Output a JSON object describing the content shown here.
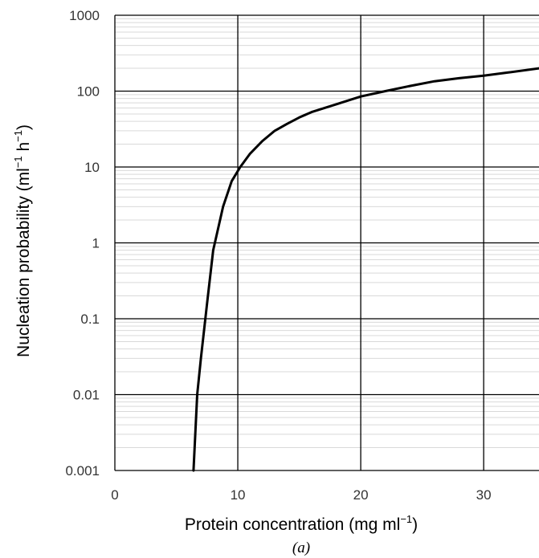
{
  "chart_data": {
    "type": "line",
    "caption": "(a)",
    "xlabel": {
      "main": "Protein concentration  (mg ml",
      "sup": "−1",
      "close": ")"
    },
    "ylabel": {
      "main": "Nucleation probability (ml",
      "sup1": "−1",
      "mid": " h",
      "sup2": "−1",
      "close": ")"
    },
    "xlim": [
      0,
      34.5
    ],
    "ylim": [
      0.001,
      1000
    ],
    "yscale": "log",
    "xticks": [
      0,
      10,
      20,
      30
    ],
    "xtick_labels": [
      "0",
      "10",
      "20",
      "30"
    ],
    "yticks": [
      0.001,
      0.01,
      0.1,
      1,
      10,
      100,
      1000
    ],
    "ytick_labels": [
      "0.001",
      "0.01",
      "0.1",
      "1",
      "10",
      "100",
      "1000"
    ],
    "grid": {
      "major": true,
      "minor_y": true
    },
    "colors": {
      "line": "#000000",
      "major_grid": "#000000",
      "minor_grid": "#d9d9d9"
    },
    "series": [
      {
        "x": [
          6.4,
          6.7,
          7.0,
          7.5,
          8.0,
          8.8,
          9.5,
          10.2,
          11.0,
          12.0,
          13.0,
          14.0,
          15.0,
          16.0,
          18.0,
          20.0,
          22.0,
          24.0,
          26.0,
          28.0,
          30.0,
          32.0,
          34.5
        ],
        "y": [
          0.001,
          0.01,
          0.03,
          0.16,
          0.8,
          3.0,
          6.5,
          10,
          15,
          22,
          30,
          37,
          45,
          53,
          67,
          85,
          100,
          117,
          135,
          148,
          160,
          176,
          200
        ]
      }
    ]
  }
}
